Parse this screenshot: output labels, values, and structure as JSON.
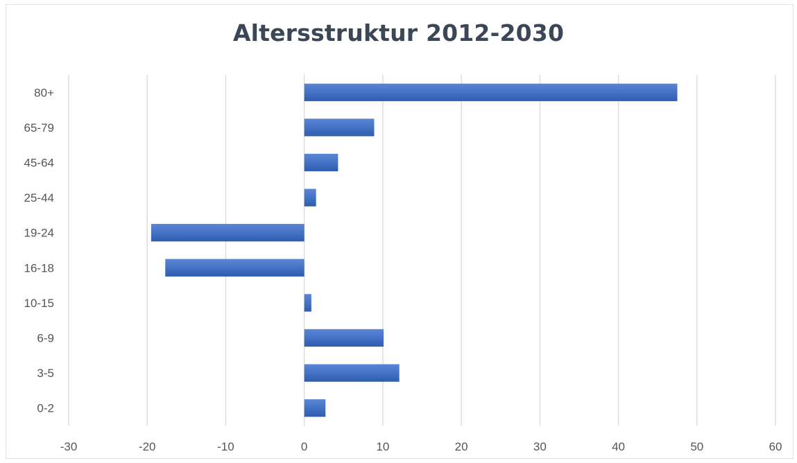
{
  "chart_data": {
    "type": "bar",
    "orientation": "horizontal",
    "title": "Altersstruktur 2012-2030",
    "xlabel": "",
    "ylabel": "",
    "categories": [
      "0-2",
      "3-5",
      "6-9",
      "10-15",
      "16-18",
      "19-24",
      "25-44",
      "45-64",
      "65-79",
      "80+"
    ],
    "values": [
      2.7,
      12.1,
      10.1,
      0.9,
      -17.7,
      -19.5,
      1.5,
      4.3,
      8.9,
      47.5
    ],
    "xlim": [
      -30,
      60
    ],
    "xticks": [
      "-30",
      "-20",
      "-10",
      "0",
      "10",
      "20",
      "30",
      "40",
      "50",
      "60"
    ],
    "grid": true,
    "legend": "none",
    "bar_color": "#4472c4"
  }
}
